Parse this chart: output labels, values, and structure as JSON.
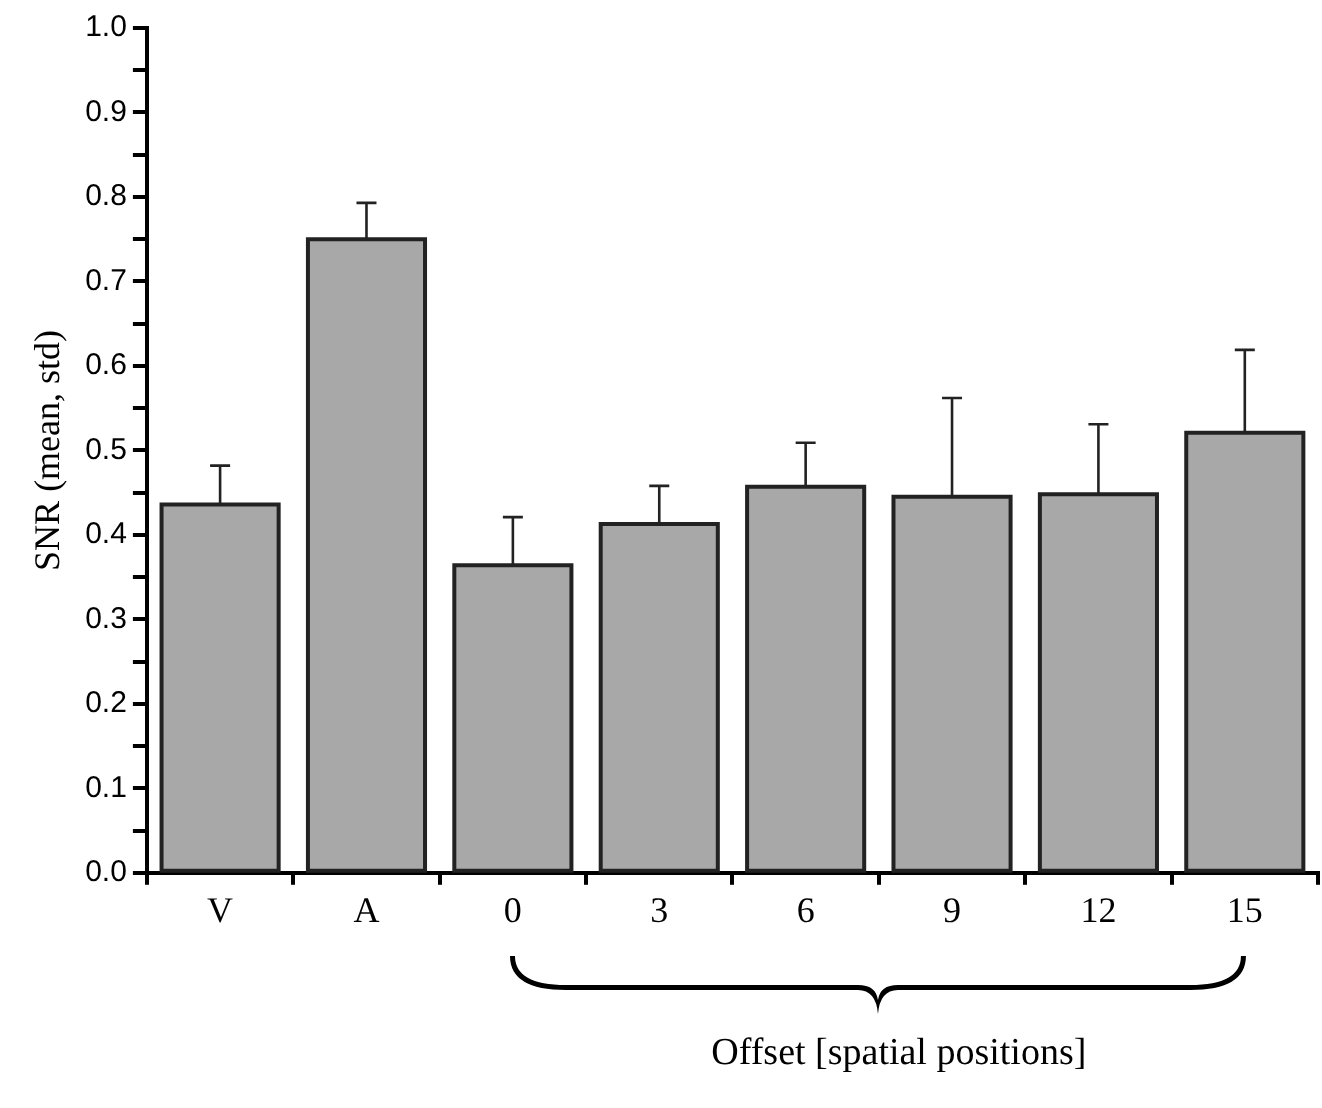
{
  "chart_data": {
    "type": "bar",
    "ylabel": "SNR (mean, std)",
    "xlabel": "Offset [spatial positions]",
    "categories": [
      "V",
      "A",
      "0",
      "3",
      "6",
      "9",
      "12",
      "15"
    ],
    "values": [
      0.436,
      0.75,
      0.364,
      0.413,
      0.457,
      0.445,
      0.448,
      0.521
    ],
    "errors": [
      [
        0.436,
        0.482
      ],
      [
        0.75,
        0.793
      ],
      [
        0.364,
        0.421
      ],
      [
        0.413,
        0.458
      ],
      [
        0.457,
        0.509
      ],
      [
        0.445,
        0.562
      ],
      [
        0.448,
        0.531
      ],
      [
        0.521,
        0.619
      ]
    ],
    "color": "#a8a8a8",
    "ylim": [
      0,
      1.0
    ],
    "yticks": [
      {
        "value": 0,
        "label": "0.0"
      },
      {
        "value": 0.05,
        "label": null
      },
      {
        "value": 0.1,
        "label": "0.1"
      },
      {
        "value": 0.15,
        "label": null
      },
      {
        "value": 0.2,
        "label": "0.2"
      },
      {
        "value": 0.25,
        "label": null
      },
      {
        "value": 0.3,
        "label": "0.3"
      },
      {
        "value": 0.35,
        "label": null
      },
      {
        "value": 0.4,
        "label": "0.4"
      },
      {
        "value": 0.45,
        "label": null
      },
      {
        "value": 0.5,
        "label": "0.5"
      },
      {
        "value": 0.55,
        "label": null
      },
      {
        "value": 0.6,
        "label": "0.6"
      },
      {
        "value": 0.65,
        "label": null
      },
      {
        "value": 0.7,
        "label": "0.7"
      },
      {
        "value": 0.75,
        "label": null
      },
      {
        "value": 0.8,
        "label": "0.8"
      },
      {
        "value": 0.85,
        "label": null
      },
      {
        "value": 0.9,
        "label": "0.9"
      },
      {
        "value": 0.95,
        "label": null
      },
      {
        "value": 1.0,
        "label": "1.0"
      }
    ],
    "grid": false,
    "legend": false
  }
}
